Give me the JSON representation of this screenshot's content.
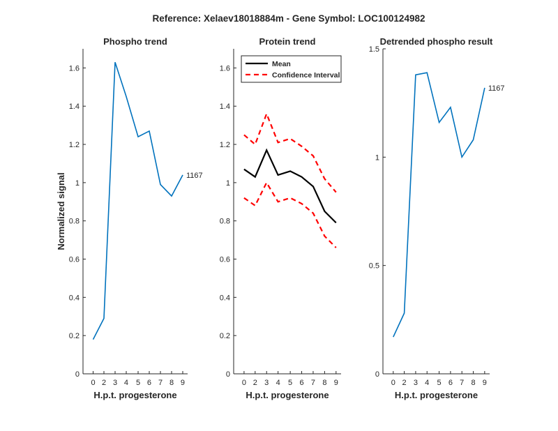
{
  "figure": {
    "title": "Reference:  Xelaev18018884m - Gene Symbol:  LOC100124982"
  },
  "colors": {
    "phospho_line": "#0072BD",
    "mean_line": "#000000",
    "ci_line": "#FF0000",
    "axis": "#262626"
  },
  "chart_data": [
    {
      "type": "line",
      "title": "Phospho trend",
      "xlabel": "H.p.t. progesterone",
      "ylabel": "Normalized signal",
      "categories": [
        "0",
        "2",
        "3",
        "4",
        "5",
        "6",
        "7",
        "8",
        "9"
      ],
      "ylim": [
        0,
        1.7
      ],
      "yticks": [
        "0",
        "0.2",
        "0.4",
        "0.6",
        "0.8",
        "1",
        "1.2",
        "1.4",
        "1.6"
      ],
      "series": [
        {
          "values": [
            0.18,
            0.29,
            1.63,
            1.45,
            1.24,
            1.27,
            0.99,
            0.93,
            1.04
          ]
        }
      ],
      "annotation": "1167",
      "grid": false
    },
    {
      "type": "line",
      "title": "Protein trend",
      "xlabel": "H.p.t. progesterone",
      "ylabel": "",
      "categories": [
        "0",
        "2",
        "3",
        "4",
        "5",
        "6",
        "7",
        "8",
        "9"
      ],
      "ylim": [
        0,
        1.7
      ],
      "yticks": [
        "0",
        "0.2",
        "0.4",
        "0.6",
        "0.8",
        "1",
        "1.2",
        "1.4",
        "1.6"
      ],
      "series": [
        {
          "name": "Mean",
          "values": [
            1.07,
            1.03,
            1.17,
            1.04,
            1.06,
            1.03,
            0.98,
            0.85,
            0.79
          ]
        },
        {
          "name": "Confidence Interval",
          "values": [
            1.25,
            1.2,
            1.36,
            1.21,
            1.23,
            1.19,
            1.14,
            1.02,
            0.95
          ]
        },
        {
          "values": [
            0.92,
            0.88,
            1.0,
            0.9,
            0.92,
            0.89,
            0.84,
            0.72,
            0.66
          ]
        }
      ],
      "legend": "top-left",
      "grid": false
    },
    {
      "type": "line",
      "title": "Detrended phospho result",
      "xlabel": "H.p.t. progesterone",
      "ylabel": "",
      "categories": [
        "0",
        "2",
        "3",
        "4",
        "5",
        "6",
        "7",
        "8",
        "9"
      ],
      "ylim": [
        0,
        1.5
      ],
      "yticks": [
        "0",
        "0.5",
        "1",
        "1.5"
      ],
      "series": [
        {
          "values": [
            0.17,
            0.28,
            1.38,
            1.39,
            1.16,
            1.23,
            1.0,
            1.08,
            1.32
          ]
        }
      ],
      "annotation": "1167",
      "grid": false
    }
  ]
}
